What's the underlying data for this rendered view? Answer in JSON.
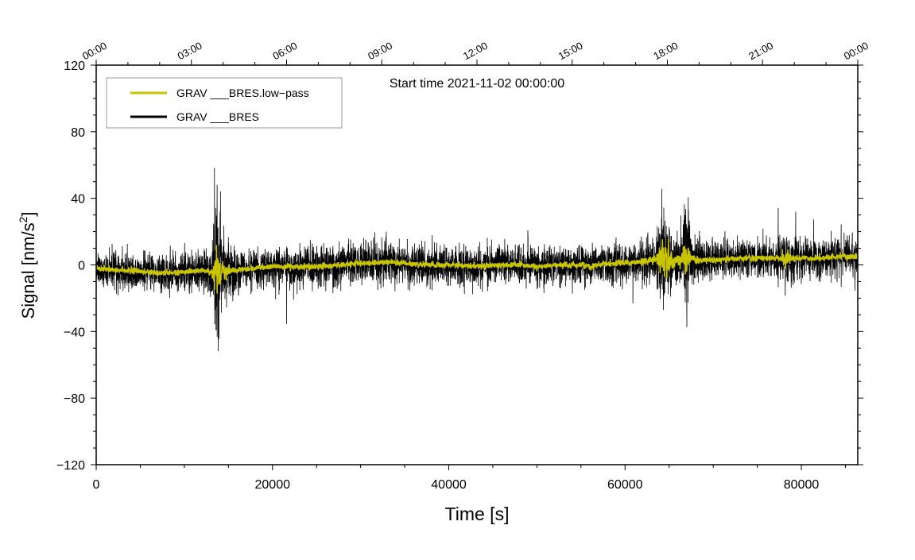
{
  "chart_data": {
    "type": "line",
    "annotation": "Start time 2021-11-02 00:00:00",
    "xlabel": "Time [s]",
    "ylabel_main": "Signal [nm/s",
    "ylabel_sup": "2",
    "ylabel_end": "]",
    "xlim": [
      0,
      86400
    ],
    "ylim": [
      -120,
      120
    ],
    "x_ticks": [
      0,
      20000,
      40000,
      60000,
      80000
    ],
    "x_tick_labels": [
      "0",
      "20000",
      "40000",
      "60000",
      "80000"
    ],
    "y_ticks": [
      -120,
      -80,
      -40,
      0,
      40,
      80,
      120
    ],
    "y_tick_labels": [
      "−120",
      "−80",
      "−40",
      "0",
      "40",
      "80",
      "120"
    ],
    "top_ticks": [
      0,
      10800,
      21600,
      32400,
      43200,
      54000,
      64800,
      75600,
      86400
    ],
    "top_tick_labels": [
      "00:00",
      "03:00",
      "06:00",
      "09:00",
      "12:00",
      "15:00",
      "18:00",
      "21:00",
      "00:00"
    ],
    "legend_position": "top-left",
    "series": [
      {
        "name": "GRAV ___BRES.low−pass",
        "color": "#c8c400",
        "x": [
          0,
          2000,
          5000,
          8000,
          10000,
          12000,
          13300,
          13600,
          14000,
          15000,
          18000,
          20000,
          22000,
          25000,
          28000,
          30000,
          32000,
          33000,
          35000,
          38000,
          40000,
          43000,
          45000,
          48000,
          50000,
          52000,
          55000,
          56000,
          58000,
          60000,
          62000,
          63500,
          64500,
          65000,
          66000,
          67000,
          68000,
          70000,
          72000,
          75000,
          78000,
          78300,
          79000,
          80000,
          82000,
          84000,
          86400
        ],
        "y": [
          -2,
          -3,
          -4,
          -5,
          -4,
          -3,
          -5,
          -7,
          -4,
          -3,
          -2,
          -1,
          -1,
          -1,
          0,
          1,
          1,
          2,
          1,
          0,
          0,
          -1,
          0,
          0,
          -1,
          0,
          0,
          -1,
          1,
          1,
          2,
          3,
          4,
          3,
          2,
          4,
          3,
          3,
          4,
          4,
          4,
          5,
          4,
          4,
          4,
          5,
          5
        ]
      },
      {
        "name": "GRAV ___BRES",
        "color": "#000000"
      }
    ]
  }
}
